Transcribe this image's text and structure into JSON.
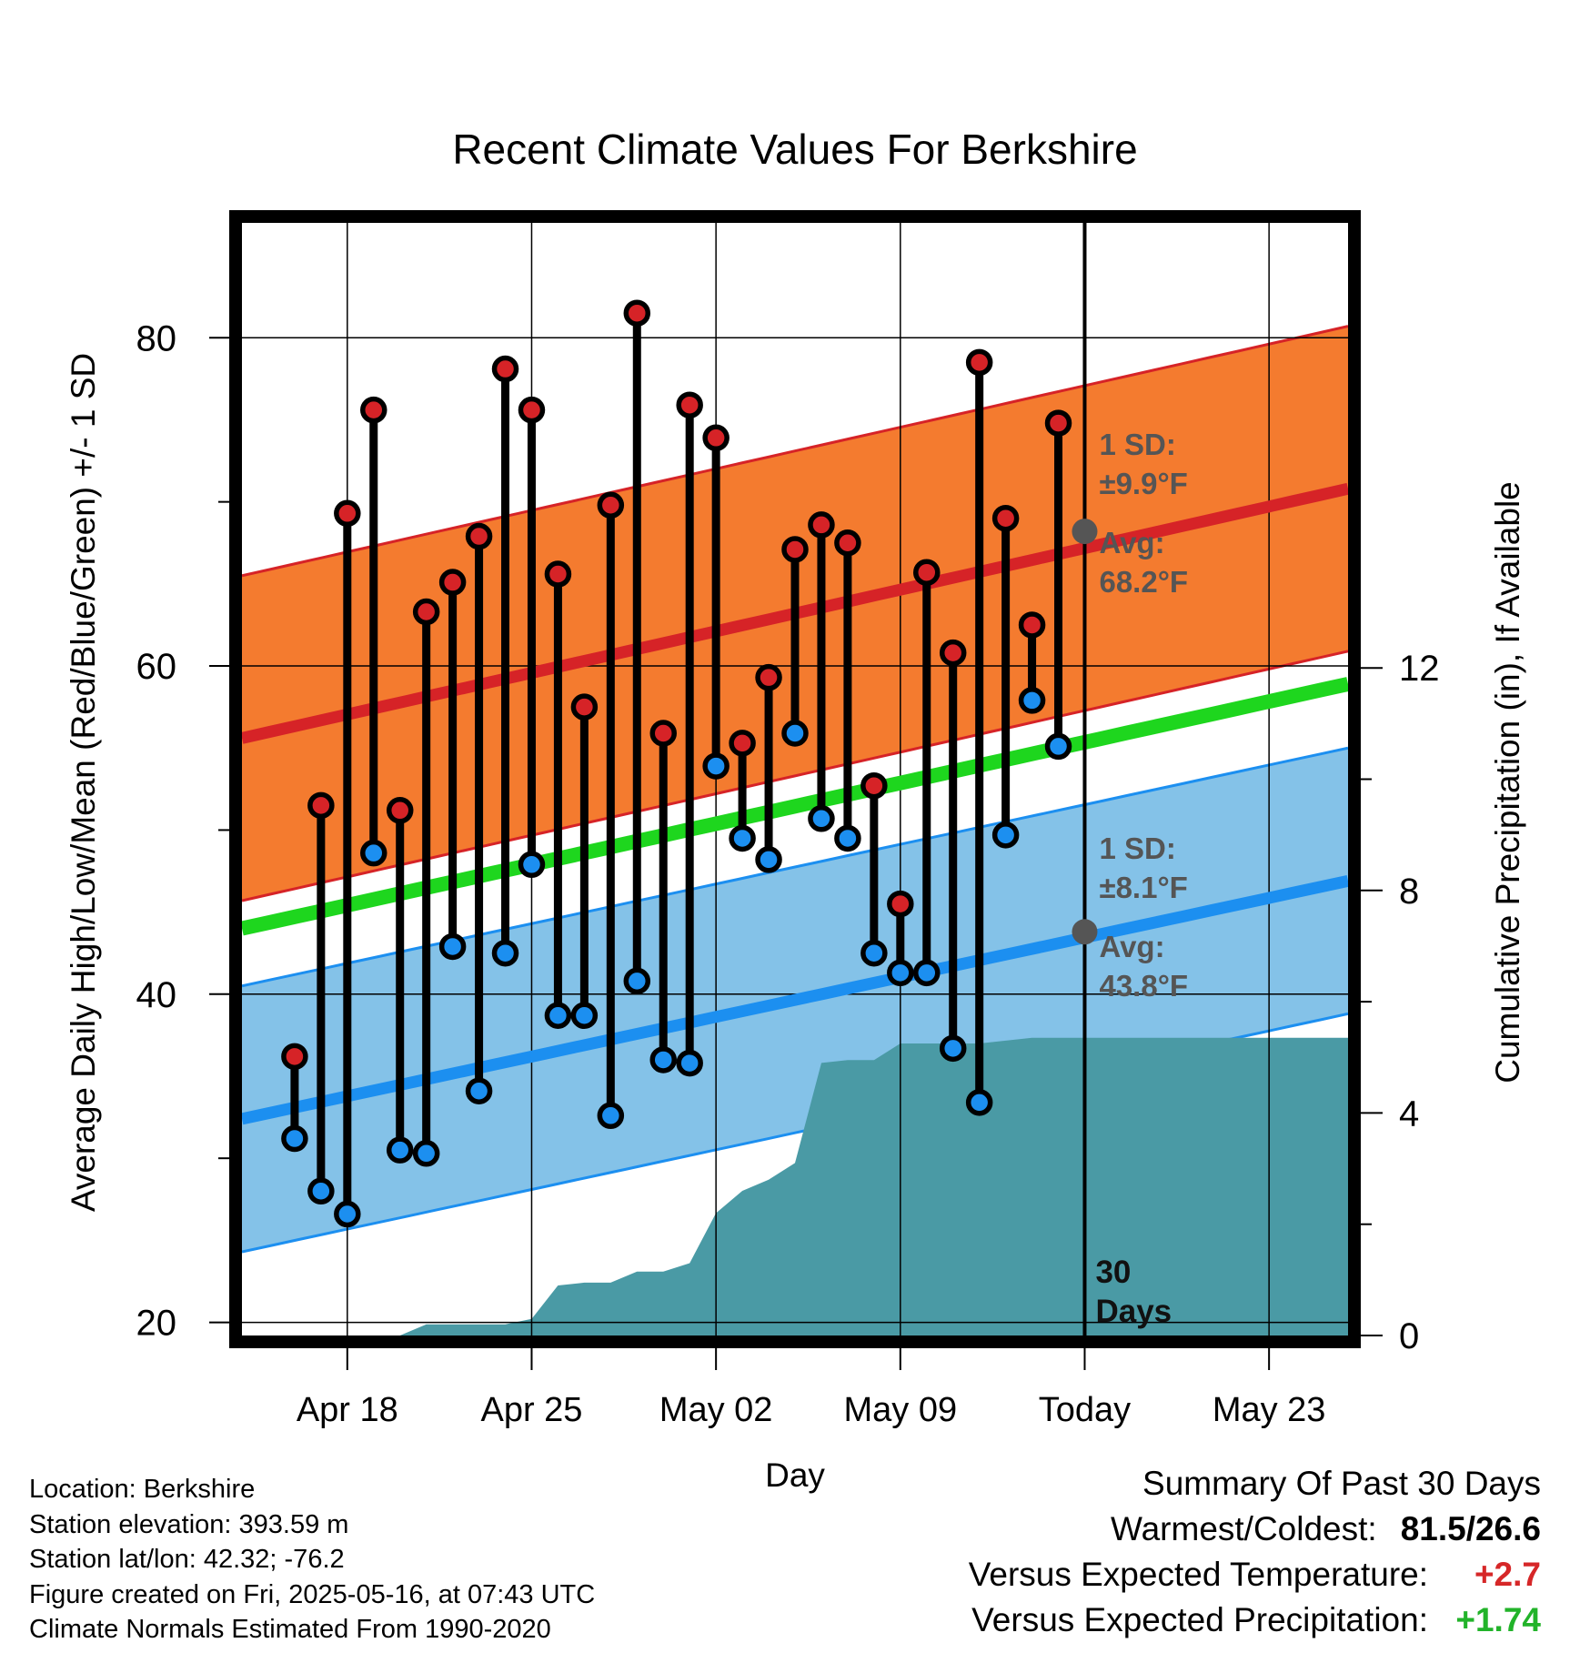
{
  "chart_data": {
    "type": "line",
    "title": "Recent Climate Values For Berkshire",
    "xlabel": "Day",
    "ylabel": "Average Daily High/Low/Mean (Red/Blue/Green) +/- 1 SD",
    "ylabel_right": "Cumulative Precipitation (in), If Available",
    "x_ticks": [
      "Apr 18",
      "Apr 25",
      "May 02",
      "May 09",
      "Today",
      "May 23"
    ],
    "y_ticks": [
      "20",
      "40",
      "60",
      "80"
    ],
    "y2_ticks": [
      "0",
      "4",
      "8",
      "12"
    ],
    "ylim": [
      19.2,
      87
    ],
    "y2lim": [
      0,
      20
    ],
    "xlim": [
      "2025-04-14",
      "2025-05-26"
    ],
    "today": "2025-05-16",
    "today_label": "30 Days",
    "grid": true,
    "highs": [
      [
        "2025-04-16",
        36.2
      ],
      [
        "2025-04-17",
        51.5
      ],
      [
        "2025-04-18",
        69.3
      ],
      [
        "2025-04-19",
        75.6
      ],
      [
        "2025-04-20",
        51.2
      ],
      [
        "2025-04-21",
        63.3
      ],
      [
        "2025-04-22",
        65.1
      ],
      [
        "2025-04-23",
        67.9
      ],
      [
        "2025-04-24",
        78.1
      ],
      [
        "2025-04-25",
        75.6
      ],
      [
        "2025-04-26",
        65.6
      ],
      [
        "2025-04-27",
        57.5
      ],
      [
        "2025-04-28",
        69.8
      ],
      [
        "2025-04-29",
        81.5
      ],
      [
        "2025-04-30",
        55.9
      ],
      [
        "2025-05-01",
        75.9
      ],
      [
        "2025-05-02",
        73.9
      ],
      [
        "2025-05-03",
        55.3
      ],
      [
        "2025-05-04",
        59.3
      ],
      [
        "2025-05-05",
        67.1
      ],
      [
        "2025-05-06",
        68.6
      ],
      [
        "2025-05-07",
        67.5
      ],
      [
        "2025-05-08",
        52.7
      ],
      [
        "2025-05-09",
        45.5
      ],
      [
        "2025-05-10",
        65.7
      ],
      [
        "2025-05-11",
        60.8
      ],
      [
        "2025-05-12",
        78.5
      ],
      [
        "2025-05-13",
        69.0
      ],
      [
        "2025-05-14",
        62.5
      ],
      [
        "2025-05-15",
        74.8
      ]
    ],
    "lows": [
      [
        "2025-04-16",
        31.2
      ],
      [
        "2025-04-17",
        28.0
      ],
      [
        "2025-04-18",
        26.6
      ],
      [
        "2025-04-19",
        48.6
      ],
      [
        "2025-04-20",
        30.5
      ],
      [
        "2025-04-21",
        30.3
      ],
      [
        "2025-04-22",
        42.9
      ],
      [
        "2025-04-23",
        34.1
      ],
      [
        "2025-04-24",
        42.5
      ],
      [
        "2025-04-25",
        47.9
      ],
      [
        "2025-04-26",
        38.7
      ],
      [
        "2025-04-27",
        38.7
      ],
      [
        "2025-04-28",
        32.6
      ],
      [
        "2025-04-29",
        40.8
      ],
      [
        "2025-04-30",
        36.0
      ],
      [
        "2025-05-01",
        35.8
      ],
      [
        "2025-05-02",
        53.9
      ],
      [
        "2025-05-03",
        49.5
      ],
      [
        "2025-05-04",
        48.2
      ],
      [
        "2025-05-05",
        55.9
      ],
      [
        "2025-05-06",
        50.7
      ],
      [
        "2025-05-07",
        49.5
      ],
      [
        "2025-05-08",
        42.5
      ],
      [
        "2025-05-09",
        41.3
      ],
      [
        "2025-05-10",
        41.3
      ],
      [
        "2025-05-11",
        36.7
      ],
      [
        "2025-05-12",
        33.4
      ],
      [
        "2025-05-13",
        49.7
      ],
      [
        "2025-05-14",
        57.9
      ],
      [
        "2025-05-15",
        55.1
      ]
    ],
    "normal_high": {
      "start": 55.6,
      "end": 70.8
    },
    "normal_low": {
      "start": 32.4,
      "end": 46.9
    },
    "normal_mean": {
      "start": 44.0,
      "end": 58.9
    },
    "sd_high": 9.9,
    "sd_low": 8.1,
    "precip_cumulative": [
      [
        "2025-04-14",
        0.0
      ],
      [
        "2025-04-20",
        0.0
      ],
      [
        "2025-04-21",
        0.2
      ],
      [
        "2025-04-24",
        0.2
      ],
      [
        "2025-04-25",
        0.3
      ],
      [
        "2025-04-26",
        0.9
      ],
      [
        "2025-04-27",
        0.95
      ],
      [
        "2025-04-28",
        0.95
      ],
      [
        "2025-04-29",
        1.15
      ],
      [
        "2025-04-30",
        1.15
      ],
      [
        "2025-05-01",
        1.3
      ],
      [
        "2025-05-02",
        2.2
      ],
      [
        "2025-05-03",
        2.6
      ],
      [
        "2025-05-04",
        2.8
      ],
      [
        "2025-05-05",
        3.1
      ],
      [
        "2025-05-06",
        4.9
      ],
      [
        "2025-05-07",
        4.95
      ],
      [
        "2025-05-08",
        4.95
      ],
      [
        "2025-05-09",
        5.25
      ],
      [
        "2025-05-10",
        5.25
      ],
      [
        "2025-05-11",
        5.25
      ],
      [
        "2025-05-12",
        5.25
      ],
      [
        "2025-05-13",
        5.3
      ],
      [
        "2025-05-14",
        5.35
      ],
      [
        "2025-05-16",
        5.35
      ],
      [
        "2025-05-26",
        5.35
      ]
    ],
    "annotations": {
      "high_sd_label": "1 SD:",
      "high_sd_value": "±9.9°F",
      "high_avg_label": "Avg:",
      "high_avg_value": "68.2°F",
      "low_sd_label": "1 SD:",
      "low_sd_value": "±8.1°F",
      "low_avg_label": "Avg:",
      "low_avg_value": "43.8°F",
      "high_avg_today": 68.2,
      "low_avg_today": 43.8
    },
    "colors": {
      "high_band": "#f47b2f",
      "high_line": "#d62327",
      "low_band": "#84c2e8",
      "low_line": "#1c8ff0",
      "mean_line": "#1ed61e",
      "precip": "#4a9aa5",
      "high_marker": "#d62327",
      "low_marker": "#1c8ff0",
      "annotation": "#555555"
    }
  },
  "info": {
    "location": "Location: Berkshire",
    "elevation": "Station elevation: 393.59 m",
    "latlon": "Station lat/lon: 42.32; -76.2",
    "created": "Figure created on Fri, 2025-05-16, at 07:43 UTC",
    "normals": "Climate Normals Estimated From 1990-2020"
  },
  "summary": {
    "title": "Summary Of Past 30 Days",
    "warmest_label": "Warmest/Coldest:",
    "warmest_value": "81.5/26.6",
    "temp_label": "Versus Expected Temperature:",
    "temp_value": "+2.7",
    "prcp_label": "Versus Expected Precipitation:",
    "prcp_value": "+1.74"
  }
}
